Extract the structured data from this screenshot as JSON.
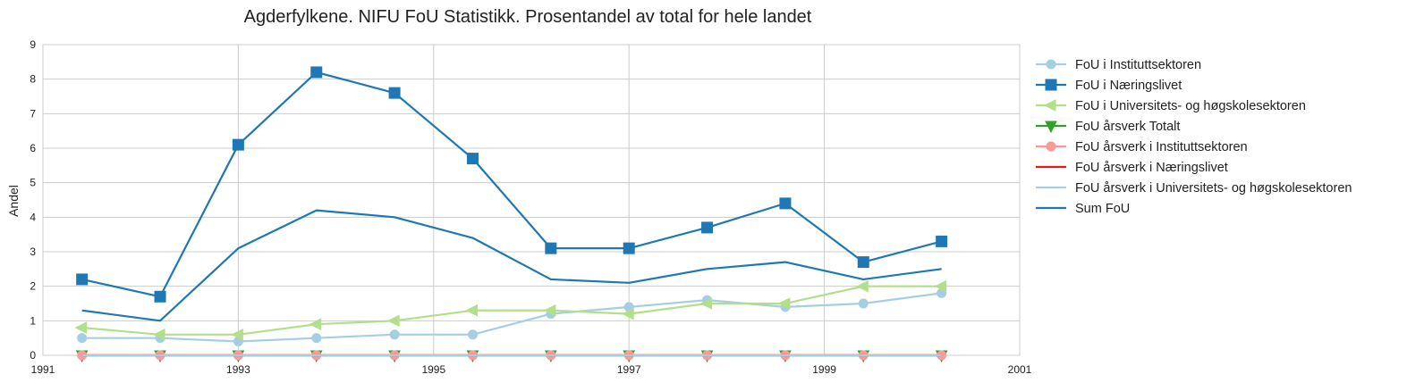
{
  "chart_data": {
    "type": "line",
    "title": "Agderfylkene. NIFU FoU Statistikk. Prosentandel av total for hele landet",
    "xlabel": "",
    "ylabel": "Andel",
    "xlim": [
      1991,
      2001
    ],
    "ylim": [
      0,
      9
    ],
    "xticks": [
      "1991",
      "1993",
      "1995",
      "1997",
      "1999",
      "2001"
    ],
    "yticks": [
      "0",
      "1",
      "2",
      "3",
      "4",
      "5",
      "6",
      "7",
      "8",
      "9"
    ],
    "grid": true,
    "legend_position": "outside-right",
    "x": [
      1991.4,
      1992.2,
      1993.0,
      1993.8,
      1994.6,
      1995.4,
      1996.2,
      1997.0,
      1997.8,
      1998.6,
      1999.4,
      2000.2
    ],
    "series": [
      {
        "name": "FoU i Instituttsektoren",
        "color": "#a6cee3",
        "marker": "circle",
        "values": [
          0.5,
          0.5,
          0.4,
          0.5,
          0.6,
          0.6,
          1.2,
          1.4,
          1.6,
          1.4,
          1.5,
          1.8
        ]
      },
      {
        "name": "FoU i Næringslivet",
        "color": "#1f78b4",
        "marker": "square",
        "values": [
          2.2,
          1.7,
          6.1,
          8.2,
          7.6,
          5.7,
          3.1,
          3.1,
          3.7,
          4.4,
          2.7,
          3.3
        ]
      },
      {
        "name": "FoU i Universitets- og høgskolesektoren",
        "color": "#b2df8a",
        "marker": "triangle-left",
        "values": [
          0.8,
          0.6,
          0.6,
          0.9,
          1.0,
          1.3,
          1.3,
          1.2,
          1.5,
          1.5,
          2.0,
          2.0
        ]
      },
      {
        "name": "FoU årsverk Totalt",
        "color": "#33a02c",
        "marker": "triangle-down",
        "values": [
          0,
          0,
          0,
          0,
          0,
          0,
          0,
          0,
          0,
          0,
          0,
          0
        ]
      },
      {
        "name": "FoU årsverk i Instituttsektoren",
        "color": "#fb9a99",
        "marker": "circle",
        "values": [
          0,
          0,
          0,
          0,
          0,
          0,
          0,
          0,
          0,
          0,
          0,
          0
        ]
      },
      {
        "name": "FoU årsverk i Næringslivet",
        "color": "#e31a1c",
        "marker": "none",
        "values": [
          0,
          0,
          0,
          0,
          0,
          0,
          0,
          0,
          0,
          0,
          0,
          0
        ]
      },
      {
        "name": "FoU årsverk i Universitets- og høgskolesektoren",
        "color": "#a6cee3",
        "marker": "none",
        "values": [
          0,
          0,
          0,
          0,
          0,
          0,
          0,
          0,
          0,
          0,
          0,
          0
        ]
      },
      {
        "name": "Sum FoU",
        "color": "#1f78b4",
        "marker": "none",
        "values": [
          1.3,
          1.0,
          3.1,
          4.2,
          4.0,
          3.4,
          2.2,
          2.1,
          2.5,
          2.7,
          2.2,
          2.5
        ]
      }
    ]
  }
}
